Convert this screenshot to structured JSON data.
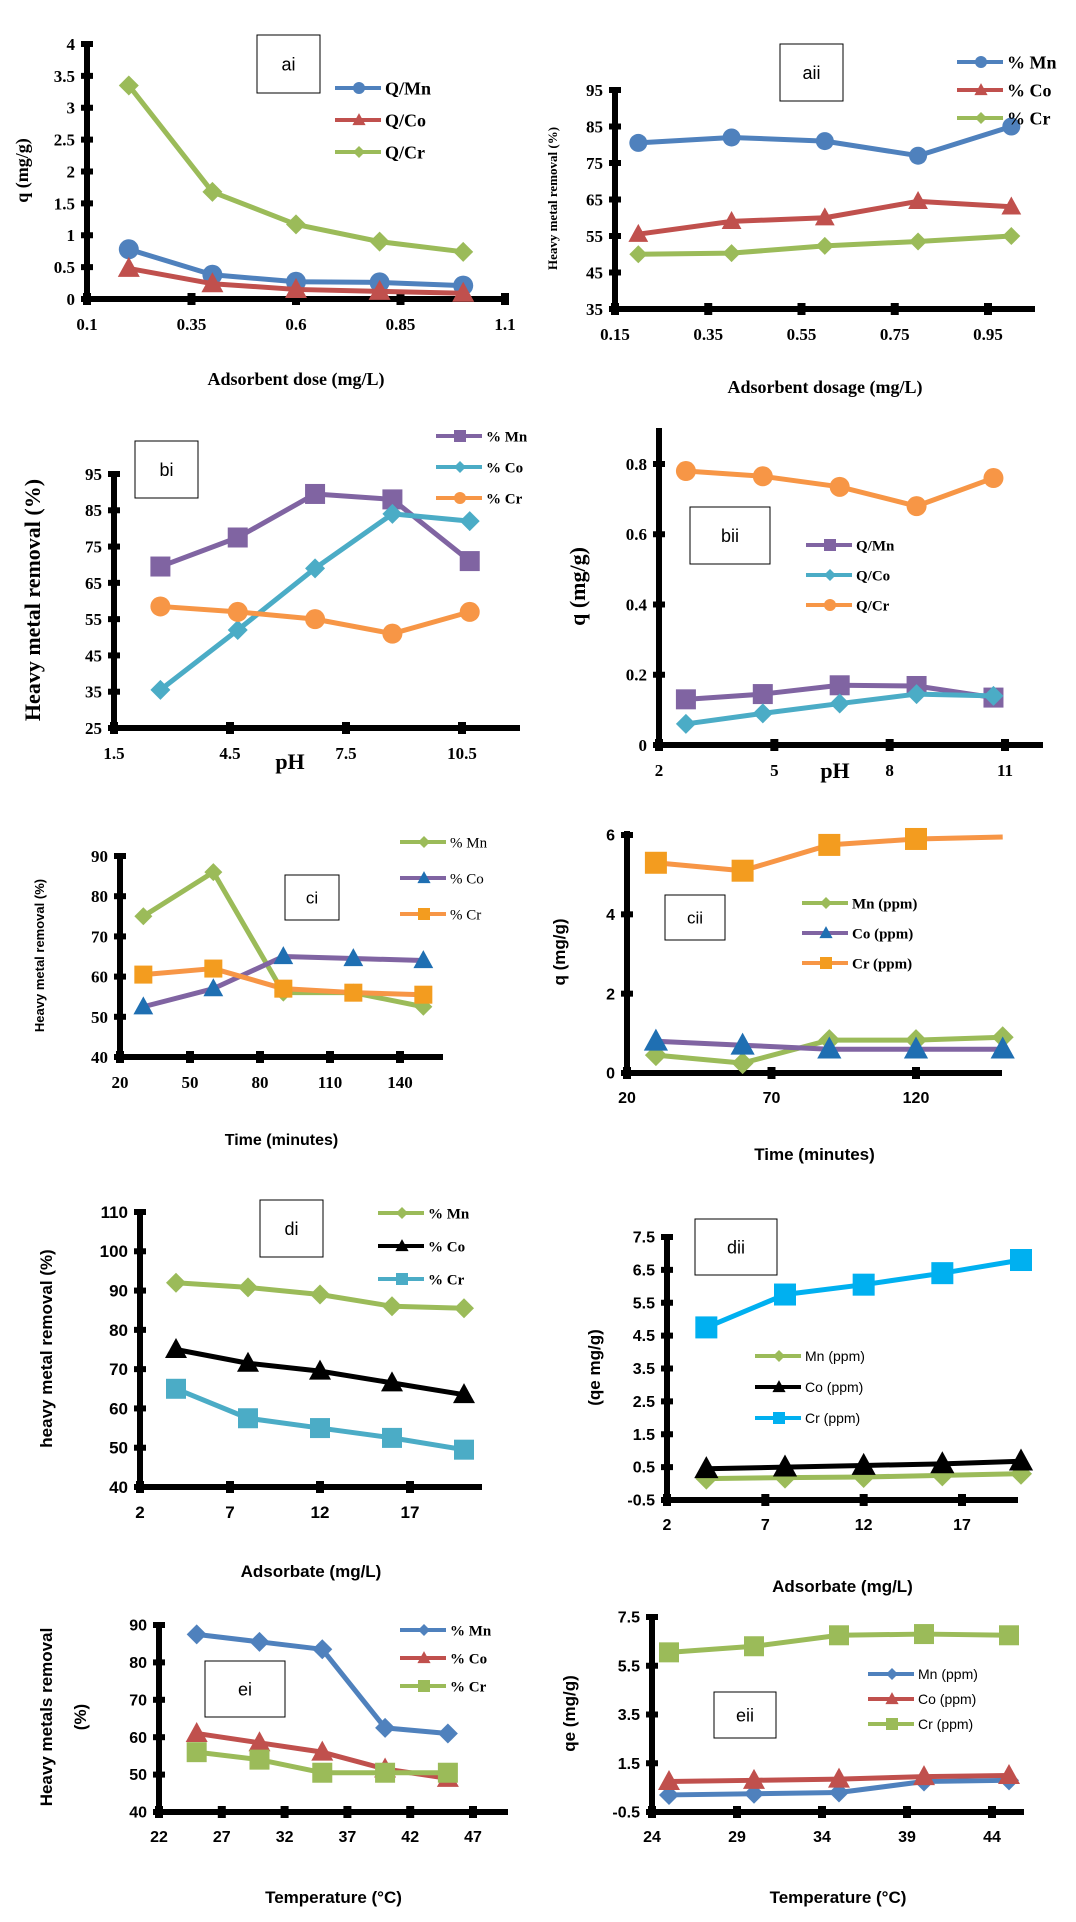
{
  "chart_data": [
    {
      "id": "ai",
      "type": "line",
      "panel_label": "ai",
      "xlabel": "Adsorbent dose (mg/L)",
      "ylabel": "q (mg/g)",
      "xlim": [
        0.1,
        1.1
      ],
      "ylim": [
        0,
        4
      ],
      "xticks": [
        "0.1",
        "0.35",
        "0.6",
        "0.85",
        "1.1"
      ],
      "yticks": [
        "0",
        "0.5",
        "1",
        "1.5",
        "2",
        "2.5",
        "3",
        "3.5",
        "4"
      ],
      "x": [
        0.2,
        0.4,
        0.6,
        0.8,
        1.0
      ],
      "series": [
        {
          "name": "Q/Mn",
          "color": "#4f81bd",
          "marker": "circle",
          "values": [
            0.78,
            0.38,
            0.27,
            0.26,
            0.21
          ]
        },
        {
          "name": "Q/Co",
          "color": "#c0504d",
          "marker": "triangle",
          "values": [
            0.48,
            0.24,
            0.15,
            0.12,
            0.09
          ]
        },
        {
          "name": "Q/Cr",
          "color": "#9bbb59",
          "marker": "diamond",
          "values": [
            3.35,
            1.68,
            1.17,
            0.9,
            0.74
          ]
        }
      ],
      "legend": "top-right",
      "grid": false
    },
    {
      "id": "aii",
      "type": "line",
      "panel_label": "aii",
      "xlabel": "Adsorbent dosage (mg/L)",
      "ylabel": "Heavy metal removal (%)",
      "xlim": [
        0.15,
        1.05
      ],
      "ylim": [
        35,
        95
      ],
      "xticks": [
        "0.15",
        "0.35",
        "0.55",
        "0.75",
        "0.95"
      ],
      "yticks": [
        "35",
        "45",
        "55",
        "65",
        "75",
        "85",
        "95"
      ],
      "x": [
        0.2,
        0.4,
        0.6,
        0.8,
        1.0
      ],
      "series": [
        {
          "name": "% Mn",
          "color": "#4f81bd",
          "marker": "circle",
          "values": [
            80.5,
            82,
            81,
            77,
            85
          ]
        },
        {
          "name": "% Co",
          "color": "#c0504d",
          "marker": "triangle",
          "values": [
            55.5,
            59,
            60,
            64.5,
            63
          ]
        },
        {
          "name": "% Cr",
          "color": "#9bbb59",
          "marker": "diamond",
          "values": [
            50,
            50.3,
            52.3,
            53.5,
            55
          ]
        }
      ],
      "legend": "top-right",
      "grid": false
    },
    {
      "id": "bi",
      "type": "line",
      "panel_label": "bi",
      "xlabel": "pH",
      "ylabel": "Heavy metal removal (%)",
      "xlim": [
        1.5,
        12.5
      ],
      "ylim": [
        25,
        95
      ],
      "xticks": [
        "1.5",
        "4.5",
        "7.5",
        "10.5"
      ],
      "xtick_values": [
        1.5,
        4.5,
        7.5,
        10.5
      ],
      "yticks": [
        "25",
        "35",
        "45",
        "55",
        "65",
        "75",
        "85",
        "95"
      ],
      "x": [
        2.7,
        4.7,
        6.7,
        8.7,
        10.7
      ],
      "series": [
        {
          "name": "% Mn",
          "color": "#8064a2",
          "marker": "square",
          "values": [
            69.5,
            77.5,
            89.5,
            88,
            71
          ]
        },
        {
          "name": "% Co",
          "color": "#4bacc6",
          "marker": "diamond",
          "values": [
            35.5,
            52,
            69,
            84,
            82
          ]
        },
        {
          "name": "% Cr",
          "color": "#f79646",
          "marker": "circle",
          "values": [
            58.5,
            57,
            55,
            51,
            57
          ]
        }
      ],
      "legend": "top-right",
      "grid": false
    },
    {
      "id": "bii",
      "type": "line",
      "panel_label": "bii",
      "xlabel": "pH",
      "ylabel": "q (mg/g)",
      "xlim": [
        2,
        12.5
      ],
      "ylim": [
        0,
        0.9
      ],
      "xticks": [
        "2",
        "5",
        "8",
        "11"
      ],
      "xtick_values": [
        2,
        5,
        8,
        11
      ],
      "yticks": [
        "0",
        "0.2",
        "0.4",
        "0.6",
        "0.8"
      ],
      "ytick_values": [
        0,
        0.2,
        0.4,
        0.6,
        0.8
      ],
      "x": [
        2.7,
        4.7,
        6.7,
        8.7,
        10.7
      ],
      "series": [
        {
          "name": "Q/Mn",
          "color": "#8064a2",
          "marker": "square",
          "values": [
            0.13,
            0.145,
            0.17,
            0.168,
            0.135
          ]
        },
        {
          "name": "Q/Co",
          "color": "#4bacc6",
          "marker": "diamond",
          "values": [
            0.06,
            0.09,
            0.118,
            0.145,
            0.14
          ]
        },
        {
          "name": "Q/Cr",
          "color": "#f79646",
          "marker": "circle",
          "values": [
            0.78,
            0.765,
            0.735,
            0.68,
            0.76
          ]
        }
      ],
      "legend": "center-right",
      "grid": false
    },
    {
      "id": "ci",
      "type": "line",
      "panel_label": "ci",
      "xlabel": "Time (minutes)",
      "ylabel": "Heavy metal removal (%)",
      "xlim": [
        20,
        160
      ],
      "ylim": [
        40,
        90
      ],
      "xticks": [
        "20",
        "50",
        "80",
        "110",
        "140"
      ],
      "xtick_values": [
        20,
        50,
        80,
        110,
        140
      ],
      "yticks": [
        "40",
        "50",
        "60",
        "70",
        "80",
        "90"
      ],
      "x": [
        30,
        60,
        90,
        120,
        150
      ],
      "series": [
        {
          "name": "% Mn",
          "color": "#9bbb59",
          "marker": "diamond",
          "values": [
            75,
            86,
            56,
            56,
            52.5
          ]
        },
        {
          "name": "% Co",
          "color": "#8064a2",
          "marker": "triangle",
          "marker_color": "#1f6fb2",
          "values": [
            52.5,
            57,
            65,
            64.5,
            64
          ]
        },
        {
          "name": "% Cr",
          "color": "#f79646",
          "marker": "square",
          "marker_color": "#f39c1f",
          "values": [
            60.5,
            62,
            57,
            56,
            55.5
          ]
        }
      ],
      "legend": "top-right",
      "grid": false
    },
    {
      "id": "cii",
      "type": "line",
      "panel_label": "cii",
      "xlabel": "Time (minutes)",
      "ylabel": "q (mg/g)",
      "xlim": [
        20,
        170
      ],
      "ylim": [
        0,
        6
      ],
      "xticks": [
        "20",
        "70",
        "120"
      ],
      "xtick_values": [
        20,
        70,
        120
      ],
      "yticks": [
        "0",
        "2",
        "4",
        "6"
      ],
      "ytick_values": [
        0,
        2,
        4,
        6
      ],
      "x": [
        30,
        60,
        90,
        120,
        150
      ],
      "series": [
        {
          "name": "Mn (ppm)",
          "color": "#9bbb59",
          "marker": "diamond",
          "values": [
            0.45,
            0.25,
            0.83,
            0.83,
            0.9
          ]
        },
        {
          "name": "Co (ppm)",
          "color": "#8064a2",
          "marker": "triangle",
          "marker_color": "#1f6fb2",
          "values": [
            0.8,
            0.7,
            0.6,
            0.6,
            0.6
          ]
        },
        {
          "name": "Cr (ppm)",
          "color": "#f79646",
          "marker": "square",
          "marker_color": "#f39c1f",
          "marker_count": 4,
          "values": [
            5.3,
            5.1,
            5.75,
            5.9,
            5.95
          ]
        }
      ],
      "legend": "center-right",
      "grid": false
    },
    {
      "id": "di",
      "type": "line",
      "panel_label": "di",
      "xlabel": "Adsorbate (mg/L)",
      "ylabel": "heavy metal removal (%)",
      "xlim": [
        2,
        22
      ],
      "ylim": [
        40,
        110
      ],
      "xticks": [
        "2",
        "7",
        "12",
        "17"
      ],
      "xtick_values": [
        2,
        7,
        12,
        17
      ],
      "yticks": [
        "40",
        "50",
        "60",
        "70",
        "80",
        "90",
        "100",
        "110"
      ],
      "x": [
        4,
        8,
        12,
        16,
        20
      ],
      "series": [
        {
          "name": "% Mn",
          "color": "#9bbb59",
          "marker": "diamond",
          "values": [
            92,
            90.8,
            89,
            86,
            85.5
          ]
        },
        {
          "name": "% Co",
          "color": "#000000",
          "marker": "triangle",
          "values": [
            75,
            71.5,
            69.5,
            66.5,
            63.5
          ]
        },
        {
          "name": "% Cr",
          "color": "#4bacc6",
          "marker": "square",
          "values": [
            65,
            57.5,
            55,
            52.5,
            49.5
          ]
        }
      ],
      "legend": "top-right",
      "grid": false
    },
    {
      "id": "dii",
      "type": "line",
      "panel_label": "dii",
      "xlabel": "Adsorbate (mg/L)",
      "ylabel": "(qe mg/g)",
      "xlim": [
        2,
        20
      ],
      "ylim": [
        -0.5,
        7.5
      ],
      "xticks": [
        "2",
        "7",
        "12",
        "17"
      ],
      "xtick_values": [
        2,
        7,
        12,
        17
      ],
      "yticks": [
        "-0.5",
        "0.5",
        "1.5",
        "2.5",
        "3.5",
        "4.5",
        "5.5",
        "6.5",
        "7.5"
      ],
      "x": [
        4,
        8,
        12,
        16,
        20
      ],
      "series": [
        {
          "name": "Mn (ppm)",
          "color": "#9bbb59",
          "marker": "diamond",
          "values": [
            0.15,
            0.18,
            0.2,
            0.25,
            0.3
          ]
        },
        {
          "name": "Co (ppm)",
          "color": "#000000",
          "marker": "triangle",
          "values": [
            0.45,
            0.5,
            0.55,
            0.6,
            0.68
          ]
        },
        {
          "name": "Cr (ppm)",
          "color": "#00b0f0",
          "marker": "square",
          "values": [
            4.75,
            5.75,
            6.05,
            6.4,
            6.8
          ]
        }
      ],
      "legend": "center-right",
      "grid": false
    },
    {
      "id": "ei",
      "type": "line",
      "panel_label": "ei",
      "xlabel": "Temperature (°C)",
      "ylabel": "Heavy metals removal (%)",
      "ylabel_lines": [
        "Heavy metals removal",
        "(%)"
      ],
      "xlim": [
        22,
        50
      ],
      "ylim": [
        40,
        90
      ],
      "xticks": [
        "22",
        "27",
        "32",
        "37",
        "42",
        "47"
      ],
      "xtick_values": [
        22,
        27,
        32,
        37,
        42,
        47
      ],
      "yticks": [
        "40",
        "50",
        "60",
        "70",
        "80",
        "90"
      ],
      "x": [
        25,
        30,
        35,
        40,
        45
      ],
      "series": [
        {
          "name": "% Mn",
          "color": "#4f81bd",
          "marker": "diamond",
          "values": [
            87.5,
            85.5,
            83.5,
            62.5,
            61
          ]
        },
        {
          "name": "% Co",
          "color": "#c0504d",
          "marker": "triangle",
          "values": [
            61,
            58.5,
            56,
            51.5,
            49
          ]
        },
        {
          "name": "% Cr",
          "color": "#9bbb59",
          "marker": "square",
          "values": [
            56,
            54,
            50.5,
            50.5,
            50.5
          ]
        }
      ],
      "legend": "top-right",
      "grid": false
    },
    {
      "id": "eii",
      "type": "line",
      "panel_label": "eii",
      "xlabel": "Temperature (°C)",
      "ylabel": "qe (mg/g)",
      "xlim": [
        24,
        46
      ],
      "ylim": [
        -0.5,
        7.5
      ],
      "xticks": [
        "24",
        "29",
        "34",
        "39",
        "44"
      ],
      "xtick_values": [
        24,
        29,
        34,
        39,
        44
      ],
      "yticks": [
        "-0.5",
        "1.5",
        "3.5",
        "5.5",
        "7.5"
      ],
      "ytick_values": [
        -0.5,
        1.5,
        3.5,
        5.5,
        7.5
      ],
      "x": [
        25,
        30,
        35,
        40,
        45
      ],
      "series": [
        {
          "name": "Mn (ppm)",
          "color": "#4f81bd",
          "marker": "diamond",
          "values": [
            0.2,
            0.25,
            0.3,
            0.75,
            0.8
          ]
        },
        {
          "name": "Co (ppm)",
          "color": "#c0504d",
          "marker": "triangle",
          "values": [
            0.75,
            0.8,
            0.85,
            0.95,
            1.0
          ]
        },
        {
          "name": "Cr (ppm)",
          "color": "#9bbb59",
          "marker": "square",
          "values": [
            6.05,
            6.3,
            6.75,
            6.8,
            6.75
          ]
        }
      ],
      "legend": "center-right",
      "grid": false
    }
  ]
}
